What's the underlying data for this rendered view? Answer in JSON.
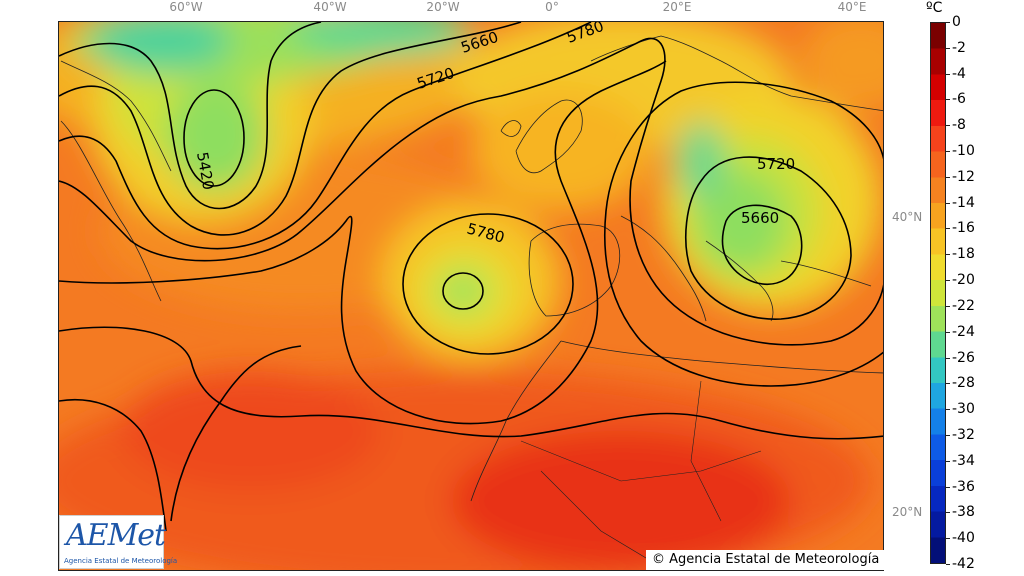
{
  "map": {
    "longitude_labels": [
      "60°W",
      "40°W",
      "20°W",
      "0°",
      "20°E",
      "40°E"
    ],
    "latitude_labels": [
      "40°N",
      "20°N"
    ],
    "contour_labels": [
      "5420",
      "5660",
      "5720",
      "5780",
      "5780",
      "5720",
      "5660"
    ]
  },
  "colorbar": {
    "unit": "ºC",
    "ticks": [
      "0",
      "-2",
      "-4",
      "-6",
      "-8",
      "-10",
      "-12",
      "-14",
      "-16",
      "-18",
      "-20",
      "-22",
      "-24",
      "-26",
      "-28",
      "-30",
      "-32",
      "-34",
      "-36",
      "-38",
      "-40",
      "-42"
    ],
    "colors": [
      "#7a0000",
      "#a80000",
      "#d40000",
      "#ee1a10",
      "#f5431c",
      "#f5641e",
      "#f58220",
      "#f7a31f",
      "#f7c425",
      "#f0dc2e",
      "#cfe53a",
      "#9ee25a",
      "#5fd890",
      "#33c7c2",
      "#1fa6e0",
      "#1480e8",
      "#0e5be6",
      "#0a3fd8",
      "#0628c0",
      "#041aa0",
      "#030f78"
    ]
  },
  "logo": {
    "name": "AEMet",
    "subtitle": "Agencia Estatal de Meteorología"
  },
  "copyright": "© Agencia Estatal de Meteorología"
}
